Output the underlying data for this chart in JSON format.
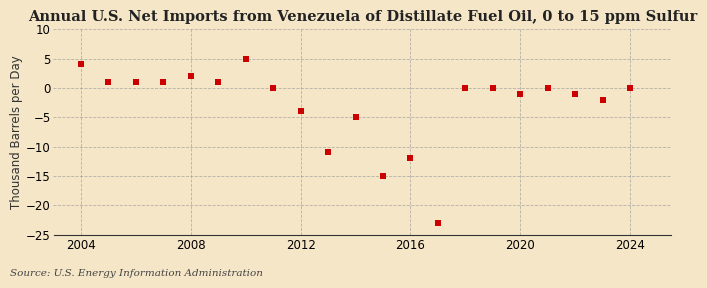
{
  "title": "Annual U.S. Net Imports from Venezuela of Distillate Fuel Oil, 0 to 15 ppm Sulfur",
  "ylabel": "Thousand Barrels per Day",
  "source": "Source: U.S. Energy Information Administration",
  "background_color": "#f5e6c8",
  "plot_background_color": "#f5e6c8",
  "marker_color": "#cc0000",
  "years": [
    2004,
    2005,
    2006,
    2007,
    2008,
    2009,
    2010,
    2011,
    2012,
    2013,
    2014,
    2015,
    2016,
    2017,
    2018,
    2019,
    2020,
    2021,
    2022,
    2023,
    2024
  ],
  "values": [
    4.0,
    1.0,
    1.0,
    1.0,
    2.0,
    1.0,
    5.0,
    0.0,
    -4.0,
    -11.0,
    -5.0,
    -15.0,
    -12.0,
    -23.0,
    0.0,
    0.0,
    -1.0,
    0.0,
    -1.0,
    -2.0,
    0.0
  ],
  "xlim": [
    2003.0,
    2025.5
  ],
  "ylim": [
    -25,
    10
  ],
  "yticks": [
    -25,
    -20,
    -15,
    -10,
    -5,
    0,
    5,
    10
  ],
  "xticks": [
    2004,
    2008,
    2012,
    2016,
    2020,
    2024
  ],
  "grid_color": "#999999",
  "title_fontsize": 10.5,
  "label_fontsize": 8.5,
  "tick_fontsize": 8.5,
  "source_fontsize": 7.5
}
